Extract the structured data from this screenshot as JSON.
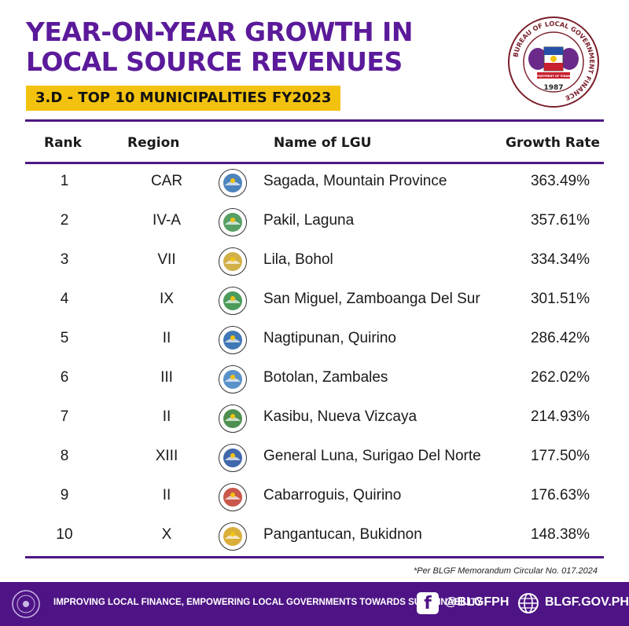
{
  "title": {
    "line1": "YEAR-ON-YEAR GROWTH IN",
    "line2": "LOCAL SOURCE REVENUES"
  },
  "subtitle": "3.D - TOP 10 MUNICIPALITIES FY2023",
  "seal": {
    "ring_text": "BUREAU OF LOCAL GOVERNMENT FINANCE",
    "year": "1987",
    "ribbon": "DEPARTMENT OF FINANCE"
  },
  "headers": {
    "rank": "Rank",
    "region": "Region",
    "name": "Name of LGU",
    "rate": "Growth Rate"
  },
  "rows": [
    {
      "rank": "1",
      "region": "CAR",
      "name": "Sagada, Mountain Province",
      "rate": "363.49%",
      "logo": "sagada-seal-icon"
    },
    {
      "rank": "2",
      "region": "IV-A",
      "name": "Pakil, Laguna",
      "rate": "357.61%",
      "logo": "pakil-seal-icon"
    },
    {
      "rank": "3",
      "region": "VII",
      "name": "Lila, Bohol",
      "rate": "334.34%",
      "logo": "lila-seal-icon"
    },
    {
      "rank": "4",
      "region": "IX",
      "name": "San Miguel, Zamboanga Del Sur",
      "rate": "301.51%",
      "logo": "san-miguel-seal-icon"
    },
    {
      "rank": "5",
      "region": "II",
      "name": "Nagtipunan, Quirino",
      "rate": "286.42%",
      "logo": "nagtipunan-seal-icon"
    },
    {
      "rank": "6",
      "region": "III",
      "name": "Botolan, Zambales",
      "rate": "262.02%",
      "logo": "botolan-seal-icon"
    },
    {
      "rank": "7",
      "region": "II",
      "name": "Kasibu, Nueva Vizcaya",
      "rate": "214.93%",
      "logo": "kasibu-seal-icon"
    },
    {
      "rank": "8",
      "region": "XIII",
      "name": "General Luna, Surigao Del Norte",
      "rate": "177.50%",
      "logo": "general-luna-seal-icon"
    },
    {
      "rank": "9",
      "region": "II",
      "name": "Cabarroguis, Quirino",
      "rate": "176.63%",
      "logo": "cabarroguis-seal-icon"
    },
    {
      "rank": "10",
      "region": "X",
      "name": "Pangantucan, Bukidnon",
      "rate": "148.38%",
      "logo": "pangantucan-seal-icon"
    }
  ],
  "footnote": "*Per BLGF Memorandum Circular No. 017.2024",
  "footer": {
    "tagline": "IMPROVING LOCAL FINANCE, EMPOWERING LOCAL GOVERNMENTS TOWARDS SUSTAINABILITY",
    "facebook": "@BLGFPH",
    "website": "BLGF.GOV.PH"
  },
  "colors": {
    "brand_purple": "#4e1485",
    "title_purple": "#5b1a9a",
    "accent_yellow": "#f3c20f"
  },
  "logo_colors": [
    "#2f6fb0",
    "#3a8f4a",
    "#c9a227",
    "#2b8a3e",
    "#1f5fa8",
    "#3c7fc0",
    "#2e7d32",
    "#1f4e9c",
    "#c0392b",
    "#d4a017"
  ]
}
